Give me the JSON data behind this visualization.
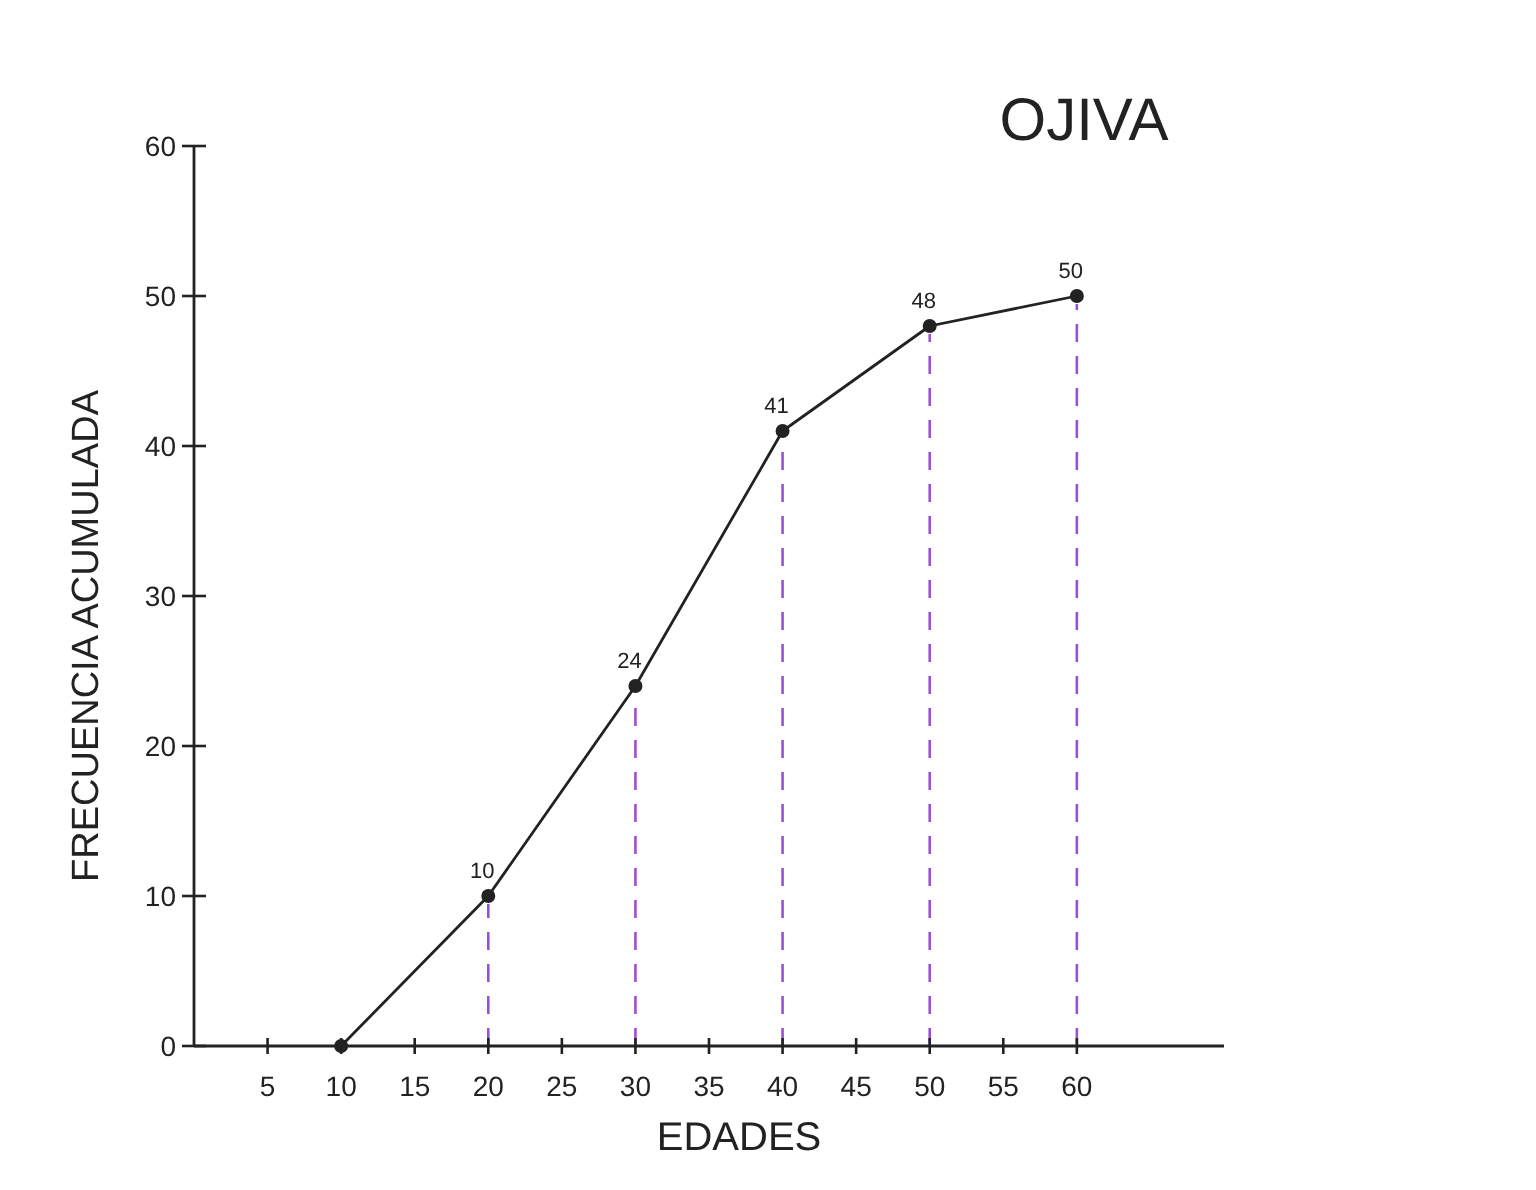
{
  "chart_data": {
    "type": "line",
    "title": "OJIVA",
    "xlabel": "EDADES",
    "ylabel": "FRECUENCIA ACUMULADA",
    "x": [
      10,
      20,
      30,
      40,
      50,
      60
    ],
    "series": [
      {
        "color": "#222222",
        "values": [
          0,
          10,
          24,
          41,
          48,
          50
        ],
        "value_labels": [
          null,
          "10",
          "24",
          "41",
          "48",
          "50"
        ]
      }
    ],
    "xlim": [
      0,
      70
    ],
    "xticks": [
      5,
      10,
      15,
      20,
      25,
      30,
      35,
      40,
      45,
      50,
      55,
      60
    ],
    "ylim": [
      0,
      60
    ],
    "yticks": [
      0,
      10,
      20,
      30,
      40,
      50,
      60
    ],
    "ref_lines": [
      {
        "axis": "x",
        "value": 20,
        "color": "#9b4fd6",
        "line_style": "dashed"
      },
      {
        "axis": "x",
        "value": 30,
        "color": "#9b4fd6",
        "line_style": "dashed"
      },
      {
        "axis": "x",
        "value": 40,
        "color": "#9b4fd6",
        "line_style": "dashed"
      },
      {
        "axis": "x",
        "value": 50,
        "color": "#9b4fd6",
        "line_style": "dashed"
      },
      {
        "axis": "x",
        "value": 60,
        "color": "#9b4fd6",
        "line_style": "dashed"
      }
    ],
    "marker": "circle",
    "line_style": "solid",
    "grid": false
  }
}
